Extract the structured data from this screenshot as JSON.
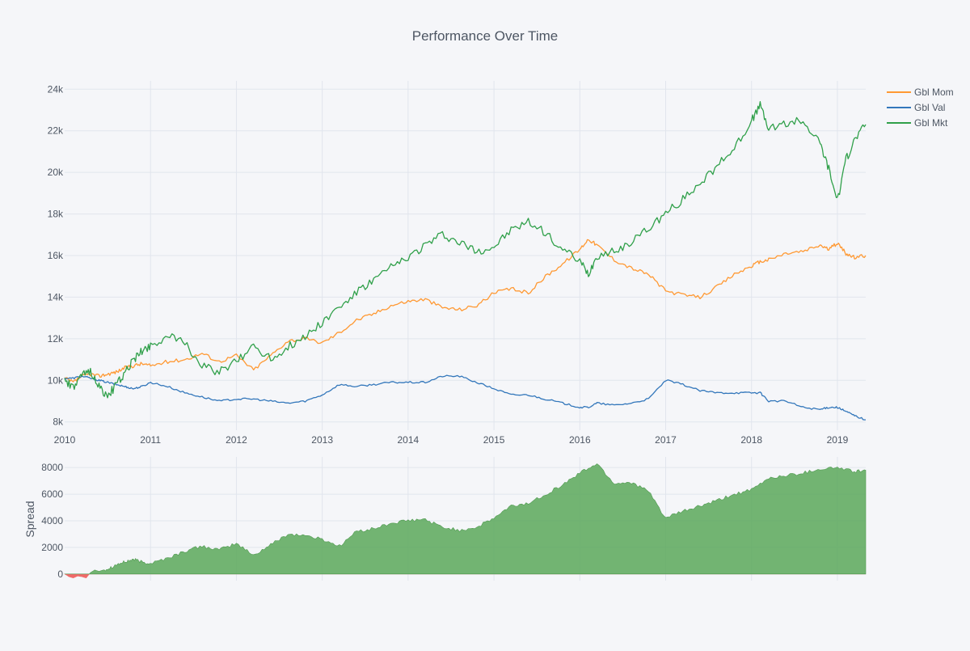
{
  "chart_data": [
    {
      "type": "line",
      "title": "Performance Over Time",
      "xlabel": "",
      "ylabel": "",
      "xlim": [
        2010.0,
        2019.33
      ],
      "ylim": [
        7600,
        24400
      ],
      "x_ticks": [
        "2010",
        "2011",
        "2012",
        "2013",
        "2014",
        "2015",
        "2016",
        "2017",
        "2018",
        "2019"
      ],
      "y_ticks": [
        "8k",
        "10k",
        "12k",
        "14k",
        "16k",
        "18k",
        "20k",
        "22k",
        "24k"
      ],
      "grid": true,
      "legend_position": "top-right",
      "x": [
        2010.0,
        2010.1,
        2010.2,
        2010.3,
        2010.4,
        2010.5,
        2010.6,
        2010.7,
        2010.8,
        2010.9,
        2011.0,
        2011.2,
        2011.4,
        2011.6,
        2011.8,
        2012.0,
        2012.2,
        2012.4,
        2012.6,
        2012.8,
        2013.0,
        2013.2,
        2013.4,
        2013.6,
        2013.8,
        2014.0,
        2014.2,
        2014.4,
        2014.6,
        2014.8,
        2015.0,
        2015.2,
        2015.4,
        2015.6,
        2015.8,
        2016.0,
        2016.1,
        2016.2,
        2016.4,
        2016.6,
        2016.8,
        2017.0,
        2017.2,
        2017.4,
        2017.6,
        2017.8,
        2018.0,
        2018.1,
        2018.2,
        2018.4,
        2018.6,
        2018.8,
        2018.9,
        2019.0,
        2019.1,
        2019.2,
        2019.33
      ],
      "series": [
        {
          "name": "Gbl Mom",
          "color": "#ff9933",
          "values": [
            10100,
            9900,
            10200,
            10300,
            10200,
            10300,
            10400,
            10600,
            10700,
            10800,
            10700,
            10900,
            11000,
            11300,
            10900,
            11200,
            10500,
            11200,
            11900,
            12000,
            11800,
            12300,
            12900,
            13200,
            13600,
            13800,
            13900,
            13500,
            13400,
            13600,
            14200,
            14400,
            14200,
            15000,
            15600,
            16300,
            16800,
            16500,
            15800,
            15400,
            15100,
            14300,
            14100,
            14000,
            14500,
            15100,
            15500,
            15700,
            15800,
            16100,
            16200,
            16500,
            16300,
            16600,
            16100,
            15900,
            16000
          ]
        },
        {
          "name": "Gbl Val",
          "color": "#3377bb",
          "values": [
            10100,
            10100,
            10200,
            10100,
            10000,
            9900,
            9800,
            9700,
            9600,
            9700,
            9900,
            9700,
            9400,
            9200,
            9000,
            9100,
            9100,
            9000,
            8900,
            9000,
            9300,
            9800,
            9700,
            9800,
            9900,
            9900,
            9900,
            10200,
            10200,
            9900,
            9600,
            9300,
            9300,
            9100,
            8900,
            8700,
            8700,
            8900,
            8800,
            8900,
            9100,
            10000,
            9800,
            9500,
            9400,
            9400,
            9400,
            9400,
            9000,
            9000,
            8700,
            8600,
            8700,
            8700,
            8500,
            8300,
            8100
          ]
        },
        {
          "name": "Gbl Mkt",
          "color": "#30a04a",
          "values": [
            10000,
            9600,
            10200,
            10500,
            9700,
            9200,
            9800,
            10300,
            11000,
            11400,
            11700,
            12100,
            11800,
            10700,
            10400,
            10900,
            11700,
            11000,
            11600,
            12100,
            12800,
            13500,
            14200,
            14800,
            15400,
            15900,
            16500,
            17000,
            16600,
            16200,
            16400,
            17200,
            17600,
            17100,
            16300,
            15700,
            15100,
            16000,
            16200,
            16700,
            17300,
            18000,
            18700,
            19500,
            20300,
            21200,
            22500,
            23200,
            22100,
            22300,
            22500,
            21400,
            20200,
            18600,
            20600,
            21600,
            22300
          ]
        }
      ]
    },
    {
      "type": "area",
      "title": "",
      "xlabel": "",
      "ylabel": "Spread",
      "xlim": [
        2010.0,
        2019.33
      ],
      "ylim": [
        -500,
        8800
      ],
      "y_ticks": [
        "0",
        "2000",
        "4000",
        "6000",
        "8000"
      ],
      "positive_color": "#5aa85a",
      "negative_color": "#f06a6a",
      "x": [
        2010.0,
        2010.05,
        2010.1,
        2010.15,
        2010.2,
        2010.25,
        2010.3,
        2010.35,
        2010.4,
        2010.5,
        2010.6,
        2010.7,
        2010.8,
        2010.9,
        2011.0,
        2011.2,
        2011.4,
        2011.6,
        2011.8,
        2012.0,
        2012.2,
        2012.4,
        2012.6,
        2012.8,
        2013.0,
        2013.2,
        2013.4,
        2013.6,
        2013.8,
        2014.0,
        2014.2,
        2014.4,
        2014.6,
        2014.8,
        2015.0,
        2015.2,
        2015.4,
        2015.6,
        2015.8,
        2016.0,
        2016.2,
        2016.4,
        2016.6,
        2016.8,
        2017.0,
        2017.2,
        2017.4,
        2017.6,
        2017.8,
        2018.0,
        2018.2,
        2018.4,
        2018.6,
        2018.8,
        2019.0,
        2019.2,
        2019.33
      ],
      "values": [
        0,
        -200,
        -300,
        -150,
        -200,
        -300,
        100,
        300,
        200,
        400,
        700,
        900,
        1100,
        900,
        800,
        1200,
        1700,
        2100,
        1800,
        2300,
        1400,
        2200,
        3000,
        2900,
        2600,
        2100,
        3200,
        3400,
        3800,
        4000,
        4100,
        3500,
        3300,
        3500,
        4200,
        5100,
        5300,
        6000,
        6700,
        7600,
        8300,
        6800,
        6900,
        6200,
        4200,
        4700,
        5100,
        5500,
        6000,
        6300,
        7200,
        7400,
        7600,
        7900,
        8000,
        7700,
        7800
      ]
    }
  ]
}
